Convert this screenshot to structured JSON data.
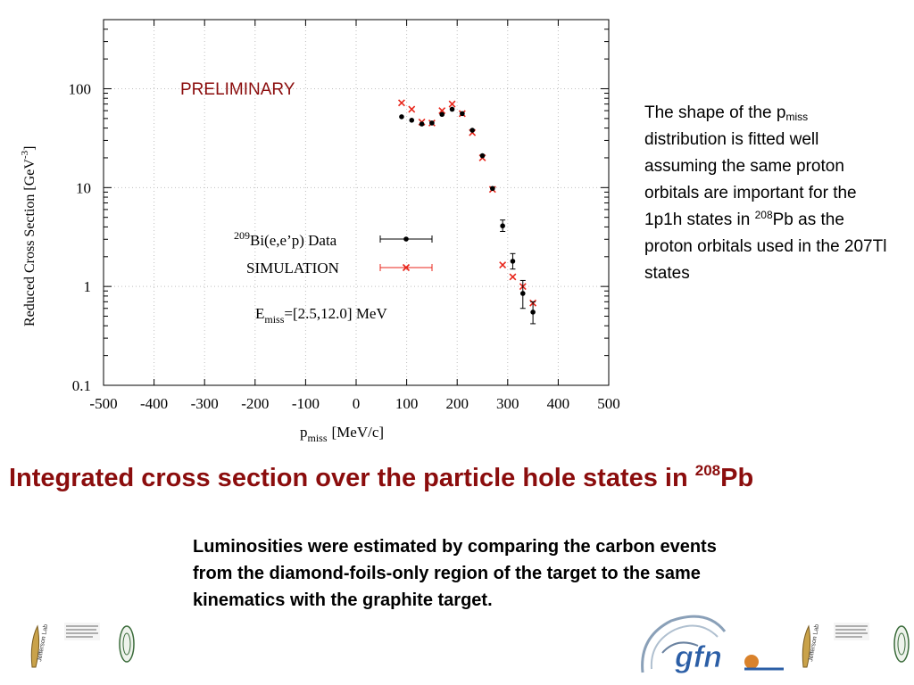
{
  "chart_data": {
    "type": "scatter",
    "preliminary_label": "PRELIMINARY",
    "ylabel_main": "Reduced Cross Section [GeV",
    "ylabel_sup": "-3",
    "ylabel_end": "]",
    "xlabel_main": "p",
    "xlabel_sub": "miss",
    "xlabel_unit": "[MeV/c]",
    "y_scale": "log",
    "xlim": [
      -500,
      500
    ],
    "ylim": [
      0.1,
      500
    ],
    "grid": true,
    "xticks": [
      "-500",
      "-400",
      "-300",
      "-200",
      "-100",
      "0",
      "100",
      "200",
      "300",
      "400",
      "500"
    ],
    "xtick_values": [
      -500,
      -400,
      -300,
      -200,
      -100,
      0,
      100,
      200,
      300,
      400,
      500
    ],
    "yticks": [
      "100",
      "10",
      "1",
      "0.1"
    ],
    "ytick_values": [
      100,
      10,
      1,
      0.1
    ],
    "legend_position": "center",
    "legend": {
      "data_sup": "209",
      "data_label": "Bi(e,e’p) Data",
      "sim_label": "SIMULATION"
    },
    "emiss": {
      "main": "E",
      "sub": "miss",
      "rest": "=[2.5,12.0] MeV"
    },
    "series": [
      {
        "name": "209Bi(e,e’p) Data",
        "marker": "dot",
        "color": "#000000",
        "x": [
          90,
          110,
          130,
          150,
          170,
          190,
          210,
          230,
          250,
          270,
          290,
          310,
          330,
          350
        ],
        "y": [
          52,
          48,
          44,
          45,
          55,
          62,
          56,
          38,
          21,
          9.8,
          4.1,
          1.8,
          0.85,
          0.55
        ],
        "yerr_lo": [
          0,
          0,
          0,
          0,
          0,
          0,
          0,
          0,
          0,
          0,
          0.5,
          0.3,
          0.25,
          0.13
        ],
        "yerr_hi": [
          0,
          0,
          0,
          0,
          0,
          0,
          0,
          0,
          0,
          0,
          0.6,
          0.35,
          0.3,
          0.15
        ]
      },
      {
        "name": "SIMULATION",
        "marker": "x",
        "color": "#e8261b",
        "x": [
          90,
          110,
          130,
          150,
          170,
          190,
          210,
          230,
          250,
          270,
          290,
          310,
          330,
          350
        ],
        "y": [
          72,
          62,
          46,
          45,
          60,
          70,
          56,
          36,
          20,
          9.6,
          1.65,
          1.25,
          1.0,
          0.68
        ]
      }
    ]
  },
  "side_note": {
    "l1a": "The shape of the p",
    "l1sub": "miss",
    "l2": "distribution is fitted well assuming the same proton orbitals are important for the 1p1h states in ",
    "sup": "208",
    "l3": "Pb as the proton orbitals used in the 207Tl states"
  },
  "headline": {
    "main": "Integrated cross section over the particle hole states in ",
    "sup": "208",
    "tail": "Pb"
  },
  "luminosity": " Luminosities were estimated by comparing the carbon events from the diamond-foils-only region of the target to the same kinematics with the graphite target.",
  "logos": {
    "gfn": "gfn"
  },
  "colors": {
    "headline": "#8b0d0d",
    "simulation": "#e8261b",
    "data": "#000000",
    "grid": "#bfbfbf"
  }
}
